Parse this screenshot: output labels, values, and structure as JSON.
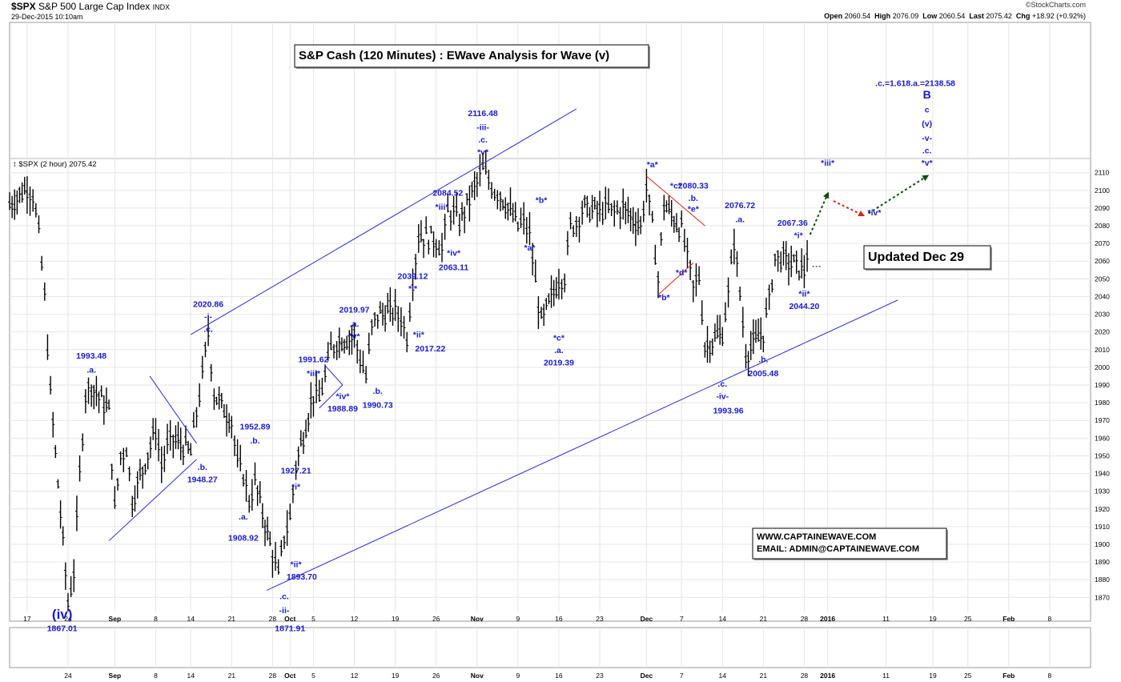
{
  "header": {
    "symbol": "$SPX",
    "name": "S&P 500 Large Cap Index",
    "exchange": "INDX",
    "date": "29-Dec-2015 10:10am",
    "brand": "©StockCharts.com",
    "quote": {
      "open_label": "Open",
      "open": "2060.54",
      "high_label": "High",
      "high": "2076.09",
      "low_label": "Low",
      "low": "2060.54",
      "last_label": "Last",
      "last": "2075.42",
      "chg_label": "Chg",
      "chg": "+18.92 (+0.92%)"
    },
    "series_label": "$SPX (2 hour) 2075.42"
  },
  "title_box": "S&P Cash (120 Minutes) : EWave Analysis for Wave (v)",
  "updated_box": "Updated Dec 29",
  "contact": {
    "line1": "WWW.CAPTAINEWAVE.COM",
    "line2": "EMAIL: ADMIN@CAPTAINEWAVE.COM"
  },
  "colors": {
    "wave_label": "#1a1acc",
    "channel": "#2b2bd9",
    "red_line": "#e02020",
    "up_arrow": "#0d4d0d",
    "down_arrow": "#e02020",
    "bars": "#000000",
    "grid": "#e6e6e6"
  },
  "chart_data": {
    "type": "ohlc",
    "ylim": [
      1862,
      2118
    ],
    "yticks": [
      1870,
      1880,
      1890,
      1900,
      1910,
      1920,
      1930,
      1940,
      1950,
      1960,
      1970,
      1980,
      1990,
      2000,
      2010,
      2020,
      2030,
      2040,
      2050,
      2060,
      2070,
      2080,
      2090,
      2100,
      2110
    ],
    "xlim_dates": [
      "2015-08-14",
      "2016-02-15"
    ],
    "xticks_top": [
      {
        "date": "2015-08-17",
        "label": "17"
      },
      {
        "date": "2015-08-24",
        "label": "24"
      },
      {
        "date": "2015-09-01",
        "label": "Sep"
      },
      {
        "date": "2015-09-08",
        "label": "8"
      },
      {
        "date": "2015-09-14",
        "label": "14"
      },
      {
        "date": "2015-09-21",
        "label": "21"
      },
      {
        "date": "2015-09-28",
        "label": "28"
      },
      {
        "date": "2015-10-01",
        "label": "Oct"
      },
      {
        "date": "2015-10-05",
        "label": "5"
      },
      {
        "date": "2015-10-12",
        "label": "12"
      },
      {
        "date": "2015-10-19",
        "label": "19"
      },
      {
        "date": "2015-10-26",
        "label": "26"
      },
      {
        "date": "2015-11-02",
        "label": "Nov"
      },
      {
        "date": "2015-11-09",
        "label": "9"
      },
      {
        "date": "2015-11-16",
        "label": "16"
      },
      {
        "date": "2015-11-23",
        "label": "23"
      },
      {
        "date": "2015-12-01",
        "label": "Dec"
      },
      {
        "date": "2015-12-07",
        "label": "7"
      },
      {
        "date": "2015-12-14",
        "label": "14"
      },
      {
        "date": "2015-12-21",
        "label": "21"
      },
      {
        "date": "2015-12-28",
        "label": "28"
      },
      {
        "date": "2016-01-01",
        "label": "2016"
      },
      {
        "date": "2016-01-11",
        "label": "11"
      },
      {
        "date": "2016-01-19",
        "label": "19"
      },
      {
        "date": "2016-01-25",
        "label": "25"
      },
      {
        "date": "2016-02-01",
        "label": "Feb"
      },
      {
        "date": "2016-02-08",
        "label": "8"
      }
    ],
    "xticks_bottom": [
      {
        "date": "2015-08-24",
        "label": "24"
      },
      {
        "date": "2015-09-01",
        "label": "Sep"
      },
      {
        "date": "2015-09-08",
        "label": "8"
      },
      {
        "date": "2015-09-14",
        "label": "14"
      },
      {
        "date": "2015-09-21",
        "label": "21"
      },
      {
        "date": "2015-09-28",
        "label": "28"
      },
      {
        "date": "2015-10-01",
        "label": "Oct"
      },
      {
        "date": "2015-10-05",
        "label": "5"
      },
      {
        "date": "2015-10-12",
        "label": "12"
      },
      {
        "date": "2015-10-19",
        "label": "19"
      },
      {
        "date": "2015-10-26",
        "label": "26"
      },
      {
        "date": "2015-11-02",
        "label": "Nov"
      },
      {
        "date": "2015-11-09",
        "label": "9"
      },
      {
        "date": "2015-11-16",
        "label": "16"
      },
      {
        "date": "2015-11-23",
        "label": "23"
      },
      {
        "date": "2015-12-01",
        "label": "Dec"
      },
      {
        "date": "2015-12-07",
        "label": "7"
      },
      {
        "date": "2015-12-14",
        "label": "14"
      },
      {
        "date": "2015-12-21",
        "label": "21"
      },
      {
        "date": "2015-12-28",
        "label": "28"
      },
      {
        "date": "2016-01-01",
        "label": "2016"
      },
      {
        "date": "2016-01-11",
        "label": "11"
      },
      {
        "date": "2016-01-19",
        "label": "19"
      },
      {
        "date": "2016-01-25",
        "label": "25"
      },
      {
        "date": "2016-02-01",
        "label": "Feb"
      },
      {
        "date": "2016-02-08",
        "label": "8"
      }
    ],
    "price_path": [
      [
        "2015-08-14",
        2092
      ],
      [
        "2015-08-17",
        2102
      ],
      [
        "2015-08-18",
        2098
      ],
      [
        "2015-08-19",
        2075
      ],
      [
        "2015-08-20",
        2040
      ],
      [
        "2015-08-21",
        1985
      ],
      [
        "2015-08-24",
        1867
      ],
      [
        "2015-08-25",
        1885
      ],
      [
        "2015-08-26",
        1940
      ],
      [
        "2015-08-27",
        1985
      ],
      [
        "2015-08-28",
        1990
      ],
      [
        "2015-08-31",
        1975
      ],
      [
        "2015-09-01",
        1920
      ],
      [
        "2015-09-02",
        1950
      ],
      [
        "2015-09-03",
        1955
      ],
      [
        "2015-09-04",
        1925
      ],
      [
        "2015-09-08",
        1965
      ],
      [
        "2015-09-09",
        1945
      ],
      [
        "2015-09-10",
        1955
      ],
      [
        "2015-09-11",
        1960
      ],
      [
        "2015-09-14",
        1952
      ],
      [
        "2015-09-15",
        1975
      ],
      [
        "2015-09-16",
        1995
      ],
      [
        "2015-09-17",
        2020
      ],
      [
        "2015-09-18",
        1985
      ],
      [
        "2015-09-21",
        1970
      ],
      [
        "2015-09-22",
        1945
      ],
      [
        "2015-09-23",
        1940
      ],
      [
        "2015-09-24",
        1925
      ],
      [
        "2015-09-25",
        1935
      ],
      [
        "2015-09-28",
        1895
      ],
      [
        "2015-09-29",
        1882
      ],
      [
        "2015-09-30",
        1905
      ],
      [
        "2015-10-01",
        1915
      ],
      [
        "2015-10-02",
        1945
      ],
      [
        "2015-10-05",
        1985
      ],
      [
        "2015-10-06",
        1982
      ],
      [
        "2015-10-07",
        1995
      ],
      [
        "2015-10-08",
        2010
      ],
      [
        "2015-10-09",
        2015
      ],
      [
        "2015-10-12",
        2018
      ],
      [
        "2015-10-13",
        2005
      ],
      [
        "2015-10-14",
        1995
      ],
      [
        "2015-10-15",
        2022
      ],
      [
        "2015-10-16",
        2030
      ],
      [
        "2015-10-19",
        2032
      ],
      [
        "2015-10-20",
        2028
      ],
      [
        "2015-10-21",
        2018
      ],
      [
        "2015-10-22",
        2050
      ],
      [
        "2015-10-23",
        2075
      ],
      [
        "2015-10-26",
        2072
      ],
      [
        "2015-10-27",
        2067
      ],
      [
        "2015-10-28",
        2088
      ],
      [
        "2015-10-29",
        2087
      ],
      [
        "2015-10-30",
        2082
      ],
      [
        "2015-11-02",
        2105
      ],
      [
        "2015-11-03",
        2112
      ],
      [
        "2015-11-04",
        2106
      ],
      [
        "2015-11-05",
        2100
      ],
      [
        "2015-11-06",
        2098
      ],
      [
        "2015-11-09",
        2080
      ],
      [
        "2015-11-10",
        2082
      ],
      [
        "2015-11-11",
        2075
      ],
      [
        "2015-11-12",
        2048
      ],
      [
        "2015-11-13",
        2025
      ],
      [
        "2015-11-16",
        2050
      ],
      [
        "2015-11-17",
        2052
      ],
      [
        "2015-11-18",
        2080
      ],
      [
        "2015-11-19",
        2082
      ],
      [
        "2015-11-20",
        2090
      ],
      [
        "2015-11-23",
        2088
      ],
      [
        "2015-11-24",
        2090
      ],
      [
        "2015-11-25",
        2088
      ],
      [
        "2015-11-27",
        2090
      ],
      [
        "2015-11-30",
        2080
      ],
      [
        "2015-12-01",
        2102
      ],
      [
        "2015-12-02",
        2080
      ],
      [
        "2015-12-03",
        2050
      ],
      [
        "2015-12-04",
        2092
      ],
      [
        "2015-12-07",
        2078
      ],
      [
        "2015-12-08",
        2062
      ],
      [
        "2015-12-09",
        2045
      ],
      [
        "2015-12-10",
        2052
      ],
      [
        "2015-12-11",
        2012
      ],
      [
        "2015-12-14",
        2020
      ],
      [
        "2015-12-15",
        2042
      ],
      [
        "2015-12-16",
        2072
      ],
      [
        "2015-12-17",
        2042
      ],
      [
        "2015-12-18",
        2008
      ],
      [
        "2015-12-21",
        2020
      ],
      [
        "2015-12-22",
        2038
      ],
      [
        "2015-12-23",
        2062
      ],
      [
        "2015-12-24",
        2062
      ],
      [
        "2015-12-28",
        2055
      ],
      [
        "2015-12-29",
        2075
      ]
    ],
    "channel": {
      "upper": [
        [
          "2015-09-14",
          2018.5
        ],
        [
          "2015-11-19",
          2146
        ]
      ],
      "lower": [
        [
          "2015-09-27",
          1874
        ],
        [
          "2016-01-13",
          2038
        ]
      ]
    },
    "projections": [
      {
        "kind": "up",
        "from": [
          "2015-12-29",
          2075
        ],
        "to": [
          "2016-01-01",
          2098
        ]
      },
      {
        "kind": "down",
        "from": [
          "2016-01-02",
          2094
        ],
        "to": [
          "2016-01-07",
          2086
        ]
      },
      {
        "kind": "up",
        "from": [
          "2016-01-08",
          2087
        ],
        "to": [
          "2016-01-18",
          2108
        ]
      }
    ],
    "annotations": [
      {
        "text": "(iv)",
        "date": "2015-08-23",
        "y": 1858,
        "size": 17
      },
      {
        "text": "1867.01",
        "date": "2015-08-23",
        "y": 1851
      },
      {
        "text": "1993.48",
        "date": "2015-08-28",
        "y": 2005
      },
      {
        "text": ".a.",
        "date": "2015-08-28",
        "y": 1997
      },
      {
        "text": "1948.27",
        "date": "2015-09-16",
        "y": 1935
      },
      {
        "text": ".b.",
        "date": "2015-09-16",
        "y": 1942
      },
      {
        "text": "2020.86",
        "date": "2015-09-17",
        "y": 2034
      },
      {
        "text": "-i-",
        "date": "2015-09-17",
        "y": 2027
      },
      {
        "text": ".c.",
        "date": "2015-09-17",
        "y": 2020
      },
      {
        "text": "1952.89",
        "date": "2015-09-25",
        "y": 1965
      },
      {
        "text": ".b.",
        "date": "2015-09-25",
        "y": 1957
      },
      {
        "text": ".a.",
        "date": "2015-09-23",
        "y": 1914
      },
      {
        "text": "1908.92",
        "date": "2015-09-23",
        "y": 1902
      },
      {
        "text": "1927.21",
        "date": "2015-10-02",
        "y": 1940
      },
      {
        "text": "*i*",
        "date": "2015-10-02",
        "y": 1931
      },
      {
        "text": "*ii*",
        "date": "2015-10-02",
        "y": 1887
      },
      {
        "text": "1893.70",
        "date": "2015-10-03",
        "y": 1880
      },
      {
        "text": ".c.",
        "date": "2015-09-30",
        "y": 1869
      },
      {
        "text": "-ii-",
        "date": "2015-09-30",
        "y": 1861
      },
      {
        "text": "1871.91",
        "date": "2015-10-01",
        "y": 1851
      },
      {
        "text": "1991.62",
        "date": "2015-10-05",
        "y": 2003
      },
      {
        "text": "*iii*",
        "date": "2015-10-05",
        "y": 1995
      },
      {
        "text": "*iv*",
        "date": "2015-10-10",
        "y": 1982
      },
      {
        "text": "1988.89",
        "date": "2015-10-10",
        "y": 1975
      },
      {
        "text": "2019.97",
        "date": "2015-10-12",
        "y": 2031
      },
      {
        "text": ".a.",
        "date": "2015-10-12",
        "y": 2023
      },
      {
        "text": "*v*",
        "date": "2015-10-12",
        "y": 2016
      },
      {
        "text": ".b.",
        "date": "2015-10-16",
        "y": 1985
      },
      {
        "text": "1990.73",
        "date": "2015-10-16",
        "y": 1977
      },
      {
        "text": "2039.12",
        "date": "2015-10-22",
        "y": 2050
      },
      {
        "text": "*i*",
        "date": "2015-10-22",
        "y": 2043
      },
      {
        "text": "*ii*",
        "date": "2015-10-23",
        "y": 2017
      },
      {
        "text": "2017.22",
        "date": "2015-10-25",
        "y": 2009
      },
      {
        "text": "2084.52",
        "date": "2015-10-28",
        "y": 2097
      },
      {
        "text": "*iii*",
        "date": "2015-10-27",
        "y": 2089
      },
      {
        "text": "*iv*",
        "date": "2015-10-29",
        "y": 2063
      },
      {
        "text": "2063.11",
        "date": "2015-10-29",
        "y": 2055
      },
      {
        "text": "2116.48",
        "date": "2015-11-03",
        "y": 2142
      },
      {
        "text": "-iii-",
        "date": "2015-11-03",
        "y": 2134
      },
      {
        "text": ".c.",
        "date": "2015-11-03",
        "y": 2127
      },
      {
        "text": "*v*",
        "date": "2015-11-03",
        "y": 2120
      },
      {
        "text": "*b*",
        "date": "2015-11-13",
        "y": 2093
      },
      {
        "text": "*a*",
        "date": "2015-11-11",
        "y": 2066
      },
      {
        "text": "*c*",
        "date": "2015-11-16",
        "y": 2015
      },
      {
        "text": ".a.",
        "date": "2015-11-16",
        "y": 2008
      },
      {
        "text": "2019.39",
        "date": "2015-11-16",
        "y": 2001
      },
      {
        "text": "*a*",
        "date": "2015-12-02",
        "y": 2113
      },
      {
        "text": "*c*",
        "date": "2015-12-06",
        "y": 2101
      },
      {
        "text": "2080.33",
        "date": "2015-12-09",
        "y": 2101
      },
      {
        "text": ".b.",
        "date": "2015-12-09",
        "y": 2094
      },
      {
        "text": "*e*",
        "date": "2015-12-09",
        "y": 2088
      },
      {
        "text": "*b*",
        "date": "2015-12-04",
        "y": 2038
      },
      {
        "text": "*d*",
        "date": "2015-12-07",
        "y": 2052
      },
      {
        "text": ".c.",
        "date": "2015-12-14",
        "y": 1989
      },
      {
        "text": "-iv-",
        "date": "2015-12-14",
        "y": 1982
      },
      {
        "text": "1993.96",
        "date": "2015-12-15",
        "y": 1974
      },
      {
        "text": "2076.72",
        "date": "2015-12-17",
        "y": 2090
      },
      {
        "text": ".a.",
        "date": "2015-12-17",
        "y": 2082
      },
      {
        "text": ".b.",
        "date": "2015-12-21",
        "y": 2003
      },
      {
        "text": "2005.48",
        "date": "2015-12-21",
        "y": 1995
      },
      {
        "text": "2067.36",
        "date": "2015-12-26",
        "y": 2080
      },
      {
        "text": "*i*",
        "date": "2015-12-27",
        "y": 2073
      },
      {
        "text": "*ii*",
        "date": "2015-12-28",
        "y": 2040
      },
      {
        "text": "2044.20",
        "date": "2015-12-28",
        "y": 2033
      },
      {
        "text": "*iii*",
        "date": "2016-01-01",
        "y": 2114
      },
      {
        "text": "*iv*",
        "date": "2016-01-09",
        "y": 2086
      },
      {
        "text": ".c.=1.618.a.=2138.58",
        "date": "2016-01-16",
        "y": 2159
      },
      {
        "text": "B",
        "date": "2016-01-18",
        "y": 2152,
        "size": 14
      },
      {
        "text": "c",
        "date": "2016-01-18",
        "y": 2144
      },
      {
        "text": "(v)",
        "date": "2016-01-18",
        "y": 2136
      },
      {
        "text": "-v-",
        "date": "2016-01-18",
        "y": 2128
      },
      {
        "text": ".c.",
        "date": "2016-01-18",
        "y": 2121
      },
      {
        "text": "*v*",
        "date": "2016-01-18",
        "y": 2114
      }
    ]
  }
}
